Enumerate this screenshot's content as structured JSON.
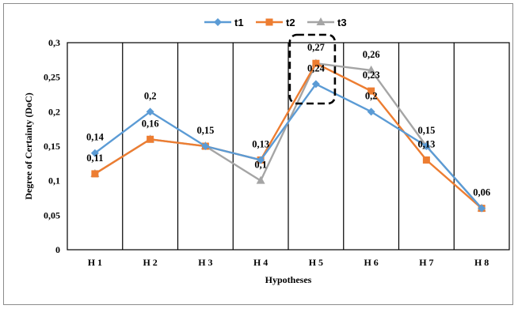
{
  "chart_data": {
    "type": "line",
    "title": "",
    "xlabel": "Hypotheses",
    "ylabel": "Degree of Certainty (DoC)",
    "categories": [
      "H1",
      "H2",
      "H3",
      "H4",
      "H5",
      "H6",
      "H7",
      "H8"
    ],
    "category_labels": [
      "H 1",
      "H 2",
      "H 3",
      "H 4",
      "H 5",
      "H 6",
      "H 7",
      "H 8"
    ],
    "ylim": [
      0,
      0.3
    ],
    "yticks": [
      "0",
      "0,05",
      "0,1",
      "0,15",
      "0,2",
      "0,25",
      "0,3"
    ],
    "grid": "vertical lines between categories",
    "legend_position": "top-center",
    "highlight_category": "H5",
    "series": [
      {
        "name": "t1",
        "color": "#5b9bd5",
        "marker": "diamond",
        "values": [
          0.14,
          0.2,
          0.15,
          0.13,
          0.24,
          0.2,
          0.15,
          0.06
        ],
        "labels": [
          "0,14",
          "0,2",
          "",
          "",
          "0,24",
          "0,2",
          "0,15",
          ""
        ]
      },
      {
        "name": "t2",
        "color": "#ed7d31",
        "marker": "square",
        "values": [
          0.11,
          0.16,
          0.15,
          0.13,
          0.27,
          0.23,
          0.13,
          0.06
        ],
        "labels": [
          "0,11",
          "0,16",
          "0,15",
          "0,13",
          "0,27",
          "0,23",
          "0,13",
          "0,06"
        ]
      },
      {
        "name": "t3",
        "color": "#a5a5a5",
        "marker": "triangle",
        "values": [
          0.11,
          0.16,
          0.15,
          0.1,
          0.27,
          0.26,
          0.15,
          0.06
        ],
        "labels": [
          "",
          "",
          "",
          "0,1",
          "",
          "0,26",
          "",
          ""
        ]
      }
    ]
  }
}
